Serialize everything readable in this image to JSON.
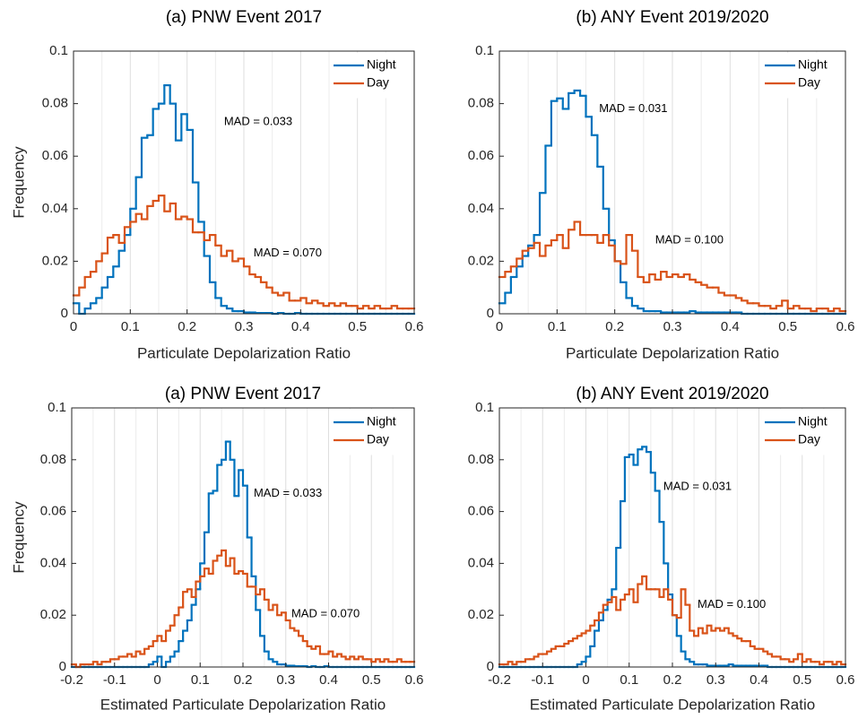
{
  "chart_data": [
    {
      "type": "histogram",
      "title": "(a) PNW Event 2017",
      "xlabel": "Particulate Depolarization Ratio",
      "ylabel": "Frequency",
      "xlim": [
        0,
        0.6
      ],
      "xticks": [
        0,
        0.1,
        0.2,
        0.3,
        0.4,
        0.5,
        0.6
      ],
      "ylim": [
        0,
        0.1
      ],
      "yticks": [
        0,
        0.02,
        0.04,
        0.06,
        0.08,
        0.1
      ],
      "grid": true,
      "legend": "northeast",
      "bins": [
        0,
        0.01,
        0.02,
        0.03,
        0.04,
        0.05,
        0.06,
        0.07,
        0.08,
        0.09,
        0.1,
        0.11,
        0.12,
        0.13,
        0.14,
        0.15,
        0.16,
        0.17,
        0.18,
        0.19,
        0.2,
        0.21,
        0.22,
        0.23,
        0.24,
        0.25,
        0.26,
        0.27,
        0.28,
        0.29,
        0.3,
        0.31,
        0.32,
        0.33,
        0.34,
        0.35,
        0.36,
        0.37,
        0.38,
        0.39,
        0.4,
        0.41,
        0.42,
        0.43,
        0.44,
        0.45,
        0.46,
        0.47,
        0.48,
        0.49,
        0.5,
        0.51,
        0.52,
        0.53,
        0.54,
        0.55,
        0.56,
        0.57,
        0.58,
        0.59,
        0.6
      ],
      "series": [
        {
          "name": "Night",
          "color": "#0072BD",
          "values": [
            0.004,
            0,
            0.002,
            0.004,
            0.006,
            0.01,
            0.014,
            0.018,
            0.024,
            0.03,
            0.04,
            0.052,
            0.067,
            0.068,
            0.078,
            0.08,
            0.087,
            0.08,
            0.066,
            0.076,
            0.07,
            0.05,
            0.035,
            0.022,
            0.012,
            0.006,
            0.003,
            0.002,
            0.001,
            0.001,
            0.0005,
            0.0005,
            0.0003,
            0.0003,
            0.0003,
            0,
            0.0003,
            0,
            0,
            0.0003,
            0,
            0,
            0,
            0,
            0,
            0,
            0,
            0,
            0,
            0,
            0,
            0,
            0,
            0,
            0,
            0,
            0,
            0,
            0,
            0
          ]
        },
        {
          "name": "Day",
          "color": "#D95319",
          "values": [
            0.007,
            0.01,
            0.014,
            0.016,
            0.02,
            0.023,
            0.029,
            0.03,
            0.027,
            0.033,
            0.035,
            0.038,
            0.036,
            0.041,
            0.043,
            0.045,
            0.039,
            0.042,
            0.036,
            0.037,
            0.036,
            0.031,
            0.031,
            0.028,
            0.03,
            0.026,
            0.022,
            0.024,
            0.02,
            0.021,
            0.018,
            0.015,
            0.014,
            0.012,
            0.01,
            0.008,
            0.007,
            0.008,
            0.005,
            0.005,
            0.006,
            0.004,
            0.005,
            0.004,
            0.003,
            0.004,
            0.003,
            0.004,
            0.003,
            0.003,
            0.002,
            0.003,
            0.002,
            0.003,
            0.002,
            0.002,
            0.003,
            0.002,
            0.002,
            0.002
          ]
        }
      ],
      "annotations": [
        {
          "text": "MAD = 0.033",
          "x": 0.265,
          "y": 0.073
        },
        {
          "text": "MAD = 0.070",
          "x": 0.317,
          "y": 0.023
        }
      ]
    },
    {
      "type": "histogram",
      "title": "(b) ANY Event 2019/2020",
      "xlabel": "Particulate Depolarization Ratio",
      "xlim": [
        0,
        0.6
      ],
      "xticks": [
        0,
        0.1,
        0.2,
        0.3,
        0.4,
        0.5,
        0.6
      ],
      "ylim": [
        0,
        0.1
      ],
      "yticks": [
        0,
        0.02,
        0.04,
        0.06,
        0.08,
        0.1
      ],
      "grid": true,
      "legend": "northeast",
      "bins": [
        0,
        0.01,
        0.02,
        0.03,
        0.04,
        0.05,
        0.06,
        0.07,
        0.08,
        0.09,
        0.1,
        0.11,
        0.12,
        0.13,
        0.14,
        0.15,
        0.16,
        0.17,
        0.18,
        0.19,
        0.2,
        0.21,
        0.22,
        0.23,
        0.24,
        0.25,
        0.26,
        0.27,
        0.28,
        0.29,
        0.3,
        0.31,
        0.32,
        0.33,
        0.34,
        0.35,
        0.36,
        0.37,
        0.38,
        0.39,
        0.4,
        0.41,
        0.42,
        0.43,
        0.44,
        0.45,
        0.46,
        0.47,
        0.48,
        0.49,
        0.5,
        0.51,
        0.52,
        0.53,
        0.54,
        0.55,
        0.56,
        0.57,
        0.58,
        0.59,
        0.6
      ],
      "series": [
        {
          "name": "Night",
          "color": "#0072BD",
          "values": [
            0.004,
            0.008,
            0.014,
            0.018,
            0.022,
            0.026,
            0.03,
            0.046,
            0.064,
            0.081,
            0.082,
            0.078,
            0.084,
            0.085,
            0.083,
            0.075,
            0.068,
            0.056,
            0.04,
            0.028,
            0.02,
            0.012,
            0.006,
            0.003,
            0.002,
            0.001,
            0.001,
            0.001,
            0.0005,
            0.0005,
            0.0005,
            0.0005,
            0.0005,
            0.001,
            0.0005,
            0.0005,
            0.0005,
            0.0005,
            0.0005,
            0.0005,
            0.0005,
            0.0005,
            0,
            0,
            0,
            0,
            0,
            0,
            0,
            0,
            0,
            0,
            0,
            0,
            0,
            0,
            0,
            0,
            0,
            0
          ]
        },
        {
          "name": "Day",
          "color": "#D95319",
          "values": [
            0.014,
            0.016,
            0.018,
            0.021,
            0.024,
            0.025,
            0.027,
            0.022,
            0.026,
            0.028,
            0.03,
            0.025,
            0.032,
            0.035,
            0.03,
            0.03,
            0.03,
            0.027,
            0.03,
            0.026,
            0.02,
            0.019,
            0.03,
            0.024,
            0.014,
            0.012,
            0.015,
            0.013,
            0.016,
            0.014,
            0.015,
            0.014,
            0.015,
            0.013,
            0.012,
            0.011,
            0.01,
            0.01,
            0.008,
            0.007,
            0.007,
            0.006,
            0.005,
            0.004,
            0.004,
            0.003,
            0.003,
            0.002,
            0.003,
            0.005,
            0.002,
            0.003,
            0.002,
            0.002,
            0.001,
            0.002,
            0.002,
            0.001,
            0.002,
            0.001
          ]
        }
      ],
      "annotations": [
        {
          "text": "MAD = 0.031",
          "x": 0.173,
          "y": 0.078
        },
        {
          "text": "MAD = 0.100",
          "x": 0.27,
          "y": 0.028
        }
      ]
    },
    {
      "type": "histogram",
      "title": "(a) PNW Event 2017",
      "xlabel": "Estimated Particulate Depolarization Ratio",
      "ylabel": "Frequency",
      "xlim": [
        -0.2,
        0.6
      ],
      "xticks": [
        -0.2,
        -0.1,
        0,
        0.1,
        0.2,
        0.3,
        0.4,
        0.5,
        0.6
      ],
      "ylim": [
        0,
        0.1
      ],
      "yticks": [
        0,
        0.02,
        0.04,
        0.06,
        0.08,
        0.1
      ],
      "grid": true,
      "legend": "northeast",
      "bins": [
        -0.2,
        -0.19,
        -0.18,
        -0.17,
        -0.16,
        -0.15,
        -0.14,
        -0.13,
        -0.12,
        -0.11,
        -0.1,
        -0.09,
        -0.08,
        -0.07,
        -0.06,
        -0.05,
        -0.04,
        -0.03,
        -0.02,
        -0.01,
        0,
        0.01,
        0.02,
        0.03,
        0.04,
        0.05,
        0.06,
        0.07,
        0.08,
        0.09,
        0.1,
        0.11,
        0.12,
        0.13,
        0.14,
        0.15,
        0.16,
        0.17,
        0.18,
        0.19,
        0.2,
        0.21,
        0.22,
        0.23,
        0.24,
        0.25,
        0.26,
        0.27,
        0.28,
        0.29,
        0.3,
        0.31,
        0.32,
        0.33,
        0.34,
        0.35,
        0.36,
        0.37,
        0.38,
        0.39,
        0.4,
        0.41,
        0.42,
        0.43,
        0.44,
        0.45,
        0.46,
        0.47,
        0.48,
        0.49,
        0.5,
        0.51,
        0.52,
        0.53,
        0.54,
        0.55,
        0.56,
        0.57,
        0.58,
        0.59,
        0.6
      ],
      "series": [
        {
          "name": "Night",
          "color": "#0072BD",
          "values": [
            0,
            0,
            0,
            0,
            0,
            0,
            0,
            0,
            0,
            0,
            0,
            0,
            0,
            0,
            0,
            0,
            0,
            0,
            0.001,
            0.002,
            0.004,
            0,
            0.002,
            0.004,
            0.006,
            0.01,
            0.014,
            0.018,
            0.024,
            0.03,
            0.04,
            0.052,
            0.067,
            0.068,
            0.078,
            0.08,
            0.087,
            0.08,
            0.066,
            0.076,
            0.07,
            0.05,
            0.035,
            0.022,
            0.012,
            0.006,
            0.003,
            0.002,
            0.001,
            0.001,
            0.0005,
            0.0005,
            0.0003,
            0.0003,
            0.0003,
            0,
            0.0003,
            0,
            0,
            0.0003,
            0,
            0,
            0,
            0,
            0,
            0,
            0,
            0,
            0,
            0,
            0,
            0,
            0,
            0,
            0,
            0,
            0,
            0,
            0,
            0
          ]
        },
        {
          "name": "Day",
          "color": "#D95319",
          "values": [
            0.001,
            0,
            0.001,
            0.001,
            0.001,
            0.002,
            0.001,
            0.002,
            0.002,
            0.003,
            0.003,
            0.004,
            0.004,
            0.005,
            0.004,
            0.006,
            0.005,
            0.007,
            0.008,
            0.01,
            0.012,
            0.01,
            0.014,
            0.016,
            0.02,
            0.023,
            0.029,
            0.03,
            0.027,
            0.033,
            0.035,
            0.038,
            0.036,
            0.041,
            0.043,
            0.045,
            0.039,
            0.042,
            0.036,
            0.037,
            0.036,
            0.031,
            0.031,
            0.028,
            0.03,
            0.026,
            0.022,
            0.024,
            0.02,
            0.021,
            0.018,
            0.015,
            0.014,
            0.012,
            0.01,
            0.008,
            0.007,
            0.008,
            0.005,
            0.005,
            0.006,
            0.004,
            0.005,
            0.004,
            0.003,
            0.004,
            0.003,
            0.004,
            0.003,
            0.003,
            0.002,
            0.003,
            0.002,
            0.003,
            0.002,
            0.002,
            0.003,
            0.002,
            0.002,
            0.002
          ]
        }
      ],
      "annotations": [
        {
          "text": "MAD = 0.033",
          "x": 0.225,
          "y": 0.067
        },
        {
          "text": "MAD = 0.070",
          "x": 0.313,
          "y": 0.0204
        }
      ]
    },
    {
      "type": "histogram",
      "title": "(b) ANY Event 2019/2020",
      "xlabel": "Estimated Particulate Depolarization Ratio",
      "xlim": [
        -0.2,
        0.6
      ],
      "xticks": [
        -0.2,
        -0.1,
        0,
        0.1,
        0.2,
        0.3,
        0.4,
        0.5,
        0.6
      ],
      "ylim": [
        0,
        0.1
      ],
      "yticks": [
        0,
        0.02,
        0.04,
        0.06,
        0.08,
        0.1
      ],
      "grid": true,
      "legend": "northeast",
      "bins": [
        -0.2,
        -0.19,
        -0.18,
        -0.17,
        -0.16,
        -0.15,
        -0.14,
        -0.13,
        -0.12,
        -0.11,
        -0.1,
        -0.09,
        -0.08,
        -0.07,
        -0.06,
        -0.05,
        -0.04,
        -0.03,
        -0.02,
        -0.01,
        0,
        0.01,
        0.02,
        0.03,
        0.04,
        0.05,
        0.06,
        0.07,
        0.08,
        0.09,
        0.1,
        0.11,
        0.12,
        0.13,
        0.14,
        0.15,
        0.16,
        0.17,
        0.18,
        0.19,
        0.2,
        0.21,
        0.22,
        0.23,
        0.24,
        0.25,
        0.26,
        0.27,
        0.28,
        0.29,
        0.3,
        0.31,
        0.32,
        0.33,
        0.34,
        0.35,
        0.36,
        0.37,
        0.38,
        0.39,
        0.4,
        0.41,
        0.42,
        0.43,
        0.44,
        0.45,
        0.46,
        0.47,
        0.48,
        0.49,
        0.5,
        0.51,
        0.52,
        0.53,
        0.54,
        0.55,
        0.56,
        0.57,
        0.58,
        0.59,
        0.6
      ],
      "series": [
        {
          "name": "Night",
          "color": "#0072BD",
          "values": [
            0,
            0,
            0,
            0,
            0,
            0,
            0,
            0,
            0,
            0,
            0,
            0,
            0,
            0,
            0,
            0,
            0,
            0,
            0.001,
            0.002,
            0.004,
            0.008,
            0.014,
            0.018,
            0.022,
            0.026,
            0.03,
            0.046,
            0.064,
            0.081,
            0.082,
            0.078,
            0.084,
            0.085,
            0.083,
            0.075,
            0.068,
            0.056,
            0.04,
            0.028,
            0.02,
            0.012,
            0.006,
            0.003,
            0.002,
            0.001,
            0.001,
            0.001,
            0.0005,
            0.0005,
            0.0005,
            0.0005,
            0.0005,
            0.001,
            0.0005,
            0.0005,
            0.0005,
            0.0005,
            0.0005,
            0.0005,
            0.0005,
            0.0005,
            0,
            0,
            0,
            0,
            0,
            0,
            0,
            0,
            0,
            0,
            0,
            0,
            0,
            0,
            0,
            0,
            0,
            0
          ]
        },
        {
          "name": "Day",
          "color": "#D95319",
          "values": [
            0.001,
            0.001,
            0.002,
            0.001,
            0.002,
            0.002,
            0.003,
            0.003,
            0.004,
            0.005,
            0.005,
            0.006,
            0.007,
            0.008,
            0.008,
            0.009,
            0.01,
            0.011,
            0.012,
            0.013,
            0.014,
            0.016,
            0.018,
            0.021,
            0.024,
            0.025,
            0.027,
            0.022,
            0.026,
            0.028,
            0.03,
            0.025,
            0.032,
            0.035,
            0.03,
            0.03,
            0.03,
            0.027,
            0.03,
            0.026,
            0.02,
            0.019,
            0.03,
            0.024,
            0.014,
            0.012,
            0.015,
            0.013,
            0.016,
            0.014,
            0.015,
            0.014,
            0.015,
            0.013,
            0.012,
            0.011,
            0.01,
            0.01,
            0.008,
            0.007,
            0.007,
            0.006,
            0.005,
            0.004,
            0.004,
            0.003,
            0.003,
            0.002,
            0.003,
            0.005,
            0.002,
            0.003,
            0.002,
            0.002,
            0.001,
            0.002,
            0.002,
            0.001,
            0.002,
            0.001
          ]
        }
      ],
      "annotations": [
        {
          "text": "MAD = 0.031",
          "x": 0.179,
          "y": 0.0695
        },
        {
          "text": "MAD = 0.100",
          "x": 0.258,
          "y": 0.024
        }
      ]
    }
  ]
}
